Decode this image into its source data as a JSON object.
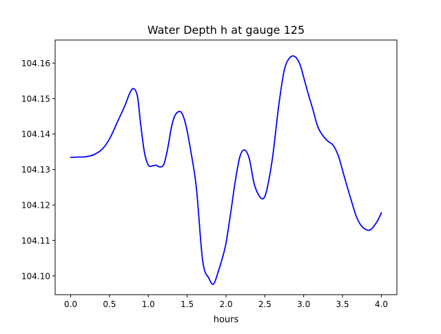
{
  "chart_data": {
    "type": "line",
    "title": "Water Depth h at gauge 125",
    "xlabel": "hours",
    "ylabel": "",
    "xlim": [
      -0.2,
      4.2
    ],
    "ylim": [
      104.0947,
      104.1665
    ],
    "xticks": [
      0.0,
      0.5,
      1.0,
      1.5,
      2.0,
      2.5,
      3.0,
      3.5,
      4.0
    ],
    "xtick_labels": [
      "0.0",
      "0.5",
      "1.0",
      "1.5",
      "2.0",
      "2.5",
      "3.0",
      "3.5",
      "4.0"
    ],
    "yticks": [
      104.1,
      104.11,
      104.12,
      104.13,
      104.14,
      104.15,
      104.16
    ],
    "ytick_labels": [
      "104.10",
      "104.11",
      "104.12",
      "104.13",
      "104.14",
      "104.15",
      "104.16"
    ],
    "grid": false,
    "series": [
      {
        "color": "#0000ff",
        "x": [
          0.0,
          0.1,
          0.2,
          0.3,
          0.4,
          0.5,
          0.6,
          0.7,
          0.76,
          0.81,
          0.86,
          0.9,
          0.95,
          1.0,
          1.05,
          1.1,
          1.15,
          1.2,
          1.25,
          1.3,
          1.35,
          1.42,
          1.48,
          1.55,
          1.62,
          1.7,
          1.78,
          1.84,
          1.9,
          1.95,
          2.0,
          2.06,
          2.12,
          2.18,
          2.24,
          2.3,
          2.36,
          2.42,
          2.48,
          2.53,
          2.6,
          2.68,
          2.75,
          2.82,
          2.89,
          2.95,
          3.0,
          3.06,
          3.12,
          3.17,
          3.22,
          3.3,
          3.38,
          3.45,
          3.52,
          3.6,
          3.68,
          3.75,
          3.82,
          3.86,
          3.9,
          3.95,
          4.0
        ],
        "y": [
          104.1334,
          104.1335,
          104.1336,
          104.1342,
          104.1356,
          104.1386,
          104.1433,
          104.1481,
          104.1515,
          104.1528,
          104.1506,
          104.143,
          104.1348,
          104.1312,
          104.131,
          104.1312,
          104.1307,
          104.1315,
          104.136,
          104.1422,
          104.1455,
          104.1462,
          104.1428,
          104.1348,
          104.1245,
          104.1042,
          104.0993,
          104.0977,
          104.1012,
          104.1048,
          104.1092,
          104.1177,
          104.1268,
          104.1337,
          104.1355,
          104.133,
          104.1262,
          104.1228,
          104.1218,
          104.1247,
          104.1335,
          104.1482,
          104.158,
          104.1615,
          104.1618,
          104.1597,
          104.156,
          104.1512,
          104.1468,
          104.1428,
          104.1404,
          104.1382,
          104.1368,
          104.1336,
          104.1282,
          104.1222,
          104.1166,
          104.1139,
          104.1129,
          104.113,
          104.1139,
          104.1155,
          104.1178
        ]
      }
    ]
  }
}
